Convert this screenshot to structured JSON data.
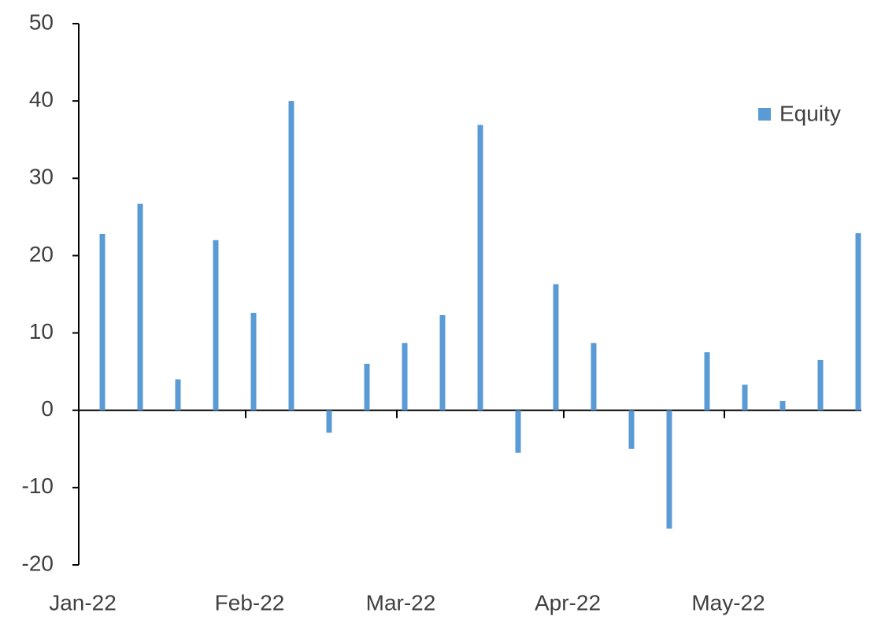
{
  "chart_data": {
    "type": "bar",
    "categories": [
      null,
      null,
      null,
      null,
      null,
      null,
      null,
      null,
      null,
      null,
      null,
      null,
      null,
      null,
      null,
      null,
      null,
      null,
      null,
      null,
      null
    ],
    "series": [
      {
        "name": "Equity",
        "color": "#5b9bd5",
        "values": [
          22.8,
          26.7,
          4.0,
          22.0,
          12.6,
          40.0,
          -2.9,
          6.0,
          8.7,
          12.3,
          36.9,
          -5.5,
          16.3,
          8.7,
          -5.0,
          -15.3,
          7.5,
          3.3,
          1.2,
          6.5,
          22.9
        ]
      }
    ],
    "month_labels": [
      "Jan-22",
      "Feb-22",
      "Mar-22",
      "Apr-22",
      "May-22"
    ],
    "ylim": [
      -20,
      50
    ],
    "yticks": [
      -20,
      -10,
      0,
      10,
      20,
      30,
      40,
      50
    ],
    "legend": "top-right"
  }
}
